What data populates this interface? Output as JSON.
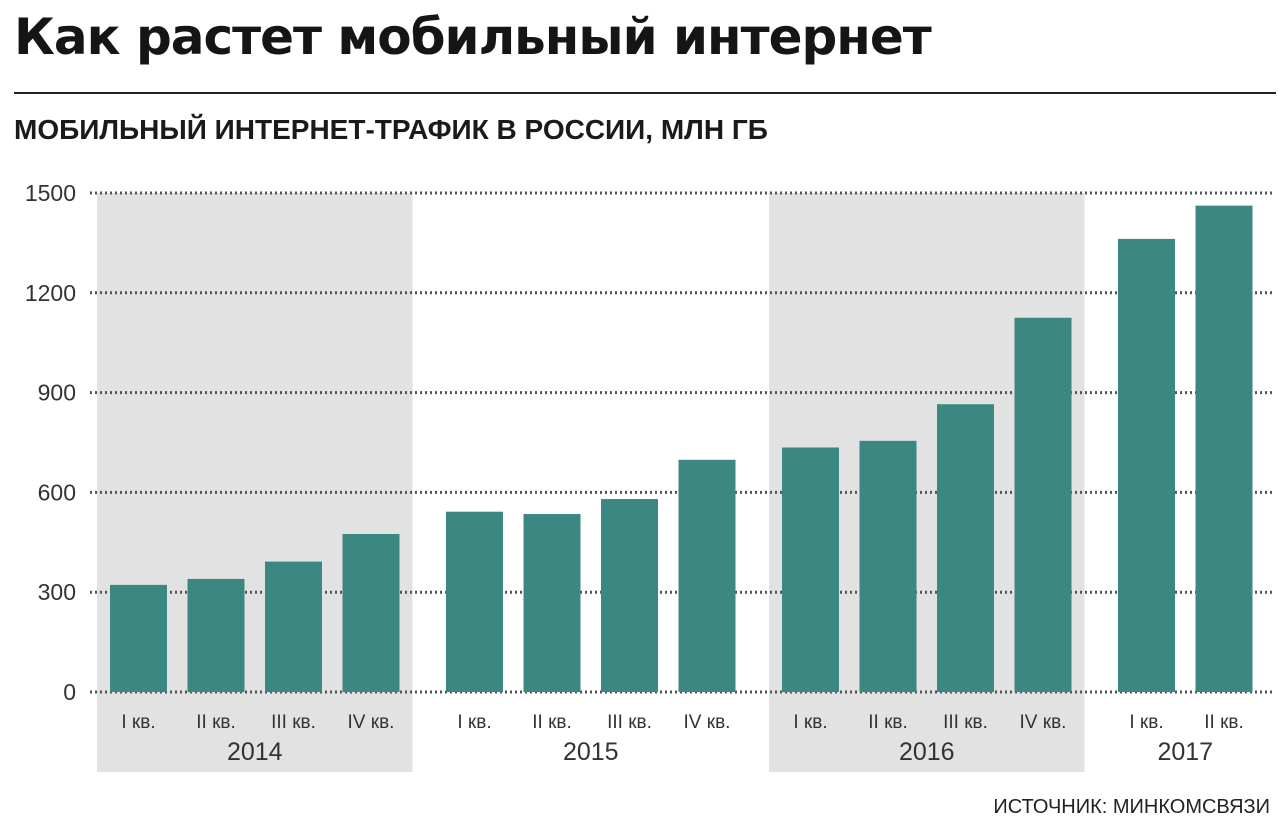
{
  "header": {
    "title": "Как растет мобильный интернет",
    "subtitle": "МОБИЛЬНЫЙ ИНТЕРНЕТ-ТРАФИК В РОССИИ, МЛН ГБ",
    "source": "ИСТОЧНИК: МИНКОМСВЯЗИ"
  },
  "colors": {
    "bar": "#3a8881",
    "band": "#e2e2e2",
    "grid": "#555555"
  },
  "chart_data": {
    "type": "bar",
    "title": "Как растет мобильный интернет",
    "subtitle": "МОБИЛЬНЫЙ ИНТЕРНЕТ-ТРАФИК В РОССИИ, МЛН ГБ",
    "ylim": [
      0,
      1500
    ],
    "yticks": [
      "0",
      "300",
      "600",
      "900",
      "1200",
      "1500"
    ],
    "grid": true,
    "groups": [
      {
        "year": "2014",
        "shaded": true,
        "quarters": [
          "I кв.",
          "II кв.",
          "III кв.",
          "IV кв."
        ],
        "values": [
          322,
          340,
          392,
          475
        ]
      },
      {
        "year": "2015",
        "shaded": false,
        "quarters": [
          "I кв.",
          "II кв.",
          "III кв.",
          "IV кв."
        ],
        "values": [
          542,
          535,
          580,
          698
        ]
      },
      {
        "year": "2016",
        "shaded": true,
        "quarters": [
          "I кв.",
          "II кв.",
          "III кв.",
          "IV кв."
        ],
        "values": [
          735,
          755,
          865,
          1125
        ]
      },
      {
        "year": "2017",
        "shaded": false,
        "quarters": [
          "I кв.",
          "II кв."
        ],
        "values": [
          1362,
          1462
        ]
      }
    ]
  }
}
